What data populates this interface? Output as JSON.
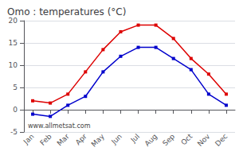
{
  "chart_data": {
    "type": "line",
    "title": "Omo : temperatures (°C)",
    "categories": [
      "Jan",
      "Feb",
      "Mar",
      "Apr",
      "May",
      "Jun",
      "Jul",
      "Aug",
      "Sep",
      "Oct",
      "Nov",
      "Dec"
    ],
    "series": [
      {
        "color": "#dd0000",
        "values": [
          2.0,
          1.5,
          3.5,
          8.5,
          13.5,
          17.5,
          19.0,
          19.0,
          16.0,
          11.5,
          8.0,
          3.5
        ]
      },
      {
        "color": "#0000cc",
        "values": [
          -1.0,
          -1.5,
          1.0,
          3.0,
          8.5,
          12.0,
          14.0,
          14.0,
          11.5,
          9.0,
          3.5,
          1.0
        ]
      }
    ],
    "marker": "square",
    "line_style": "solid",
    "ylim": [
      -5,
      20
    ],
    "yticks": [
      -5,
      0,
      5,
      10,
      15,
      20
    ],
    "grid": true,
    "annotations": [
      "www.allmetsat.com"
    ]
  }
}
